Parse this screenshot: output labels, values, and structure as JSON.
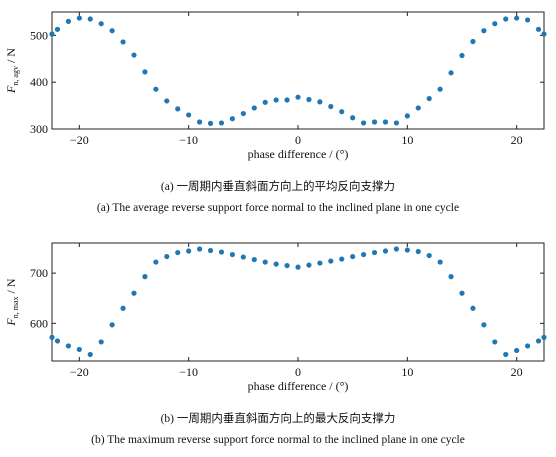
{
  "chart_data": [
    {
      "type": "scatter",
      "xlabel": "phase difference / (°)",
      "ylabel_main": "F",
      "ylabel_sub": "n, agv",
      "ylabel_unit": " / N",
      "xlim": [
        -22.5,
        22.5
      ],
      "ylim": [
        300,
        550
      ],
      "xticks": [
        -20,
        -10,
        0,
        10,
        20
      ],
      "yticks": [
        300,
        400,
        500
      ],
      "color": "#1f77b4",
      "x": [
        -22.5,
        -22,
        -21,
        -20,
        -19,
        -18,
        -17,
        -16,
        -15,
        -14,
        -13,
        -12,
        -11,
        -10,
        -9,
        -8,
        -7,
        -6,
        -5,
        -4,
        -3,
        -2,
        -1,
        0,
        1,
        2,
        3,
        4,
        5,
        6,
        7,
        8,
        9,
        10,
        11,
        12,
        13,
        14,
        15,
        16,
        17,
        18,
        19,
        20,
        21,
        22,
        22.5
      ],
      "y": [
        503,
        513,
        530,
        537,
        535,
        525,
        510,
        486,
        458,
        422,
        385,
        360,
        343,
        330,
        315,
        312,
        313,
        322,
        333,
        345,
        357,
        362,
        362,
        368,
        363,
        358,
        348,
        337,
        324,
        313,
        315,
        315,
        313,
        328,
        345,
        365,
        385,
        420,
        457,
        487,
        510,
        525,
        535,
        537,
        533,
        513,
        503
      ],
      "caption_cn": "(a) 一周期内垂直斜面方向上的平均反向支撑力",
      "caption_en": "(a) The average reverse support force normal to the inclined plane in one cycle"
    },
    {
      "type": "scatter",
      "xlabel": "phase difference / (°)",
      "ylabel_main": "F",
      "ylabel_sub": "n, max",
      "ylabel_unit": " / N",
      "xlim": [
        -22.5,
        22.5
      ],
      "ylim": [
        525,
        760
      ],
      "xticks": [
        -20,
        -10,
        0,
        10,
        20
      ],
      "yticks": [
        600,
        700
      ],
      "color": "#1f77b4",
      "x": [
        -22.5,
        -22,
        -21,
        -20,
        -19,
        -18,
        -17,
        -16,
        -15,
        -14,
        -13,
        -12,
        -11,
        -10,
        -9,
        -8,
        -7,
        -6,
        -5,
        -4,
        -3,
        -2,
        -1,
        0,
        1,
        2,
        3,
        4,
        5,
        6,
        7,
        8,
        9,
        10,
        11,
        12,
        13,
        14,
        15,
        16,
        17,
        18,
        19,
        20,
        21,
        22,
        22.5
      ],
      "y": [
        572,
        565,
        555,
        548,
        538,
        563,
        597,
        630,
        660,
        693,
        722,
        733,
        741,
        744,
        748,
        745,
        742,
        737,
        732,
        727,
        722,
        718,
        715,
        712,
        716,
        720,
        724,
        728,
        733,
        737,
        741,
        744,
        748,
        746,
        743,
        735,
        722,
        693,
        660,
        630,
        597,
        563,
        538,
        546,
        555,
        565,
        572
      ],
      "caption_cn": "(b) 一周期内垂直斜面方向上的最大反向支撑力",
      "caption_en": "(b) The maximum reverse support force normal to the inclined plane in one cycle"
    }
  ]
}
